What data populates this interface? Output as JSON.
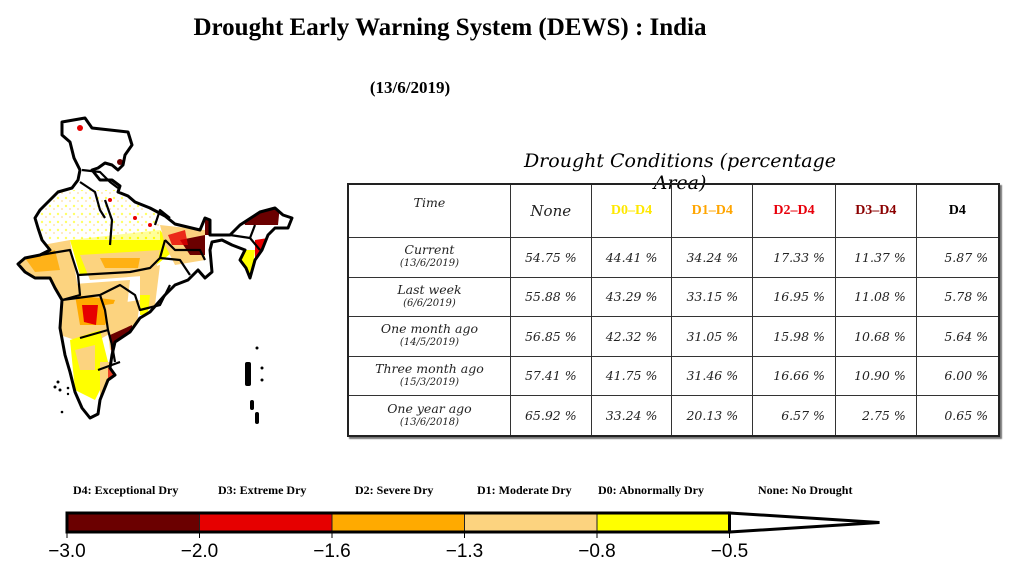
{
  "header": {
    "title": "Drought Early Warning System (DEWS) : India",
    "date": "(13/6/2019)"
  },
  "map": {
    "name": "India drought map",
    "description": "Choropleth of India with state boundaries shaded by drought category"
  },
  "table": {
    "caption": "Drought Conditions (percentage Area)",
    "headers": [
      {
        "label": "Time",
        "color": "#222222"
      },
      {
        "label": "None",
        "color": "#222222"
      },
      {
        "label": "D0–D4",
        "color": "#FFE800"
      },
      {
        "label": "D1–D4",
        "color": "#FFA500"
      },
      {
        "label": "D2–D4",
        "color": "#E8000B"
      },
      {
        "label": "D3–D4",
        "color": "#8B0000"
      },
      {
        "label": "D4",
        "color": "#000000"
      }
    ],
    "rows": [
      {
        "label": "Current",
        "date": "(13/6/2019)",
        "values": [
          "54.75 %",
          "44.41 %",
          "34.24 %",
          "17.33 %",
          "11.37 %",
          "5.87 %"
        ]
      },
      {
        "label": "Last week",
        "date": "(6/6/2019)",
        "values": [
          "55.88 %",
          "43.29 %",
          "33.15 %",
          "16.95 %",
          "11.08 %",
          "5.78 %"
        ]
      },
      {
        "label": "One month ago",
        "date": "(14/5/2019)",
        "values": [
          "56.85 %",
          "42.32 %",
          "31.05 %",
          "15.98 %",
          "10.68 %",
          "5.64 %"
        ]
      },
      {
        "label": "Three month ago",
        "date": "(15/3/2019)",
        "values": [
          "57.41 %",
          "41.75 %",
          "31.46 %",
          "16.66 %",
          "10.90 %",
          "6.00 %"
        ]
      },
      {
        "label": "One year ago",
        "date": "(13/6/2018)",
        "values": [
          "65.92 %",
          "33.24 %",
          "20.13 %",
          "6.57 %",
          "2.75 %",
          "0.65 %"
        ]
      }
    ]
  },
  "legend": {
    "labels": [
      "D4: Exceptional Dry",
      "D3: Extreme Dry",
      "D2: Severe Dry",
      "D1: Moderate Dry",
      "D0: Abnormally Dry",
      "None: No Drought"
    ],
    "ticks": [
      "−3.0",
      "−2.0",
      "−1.6",
      "−1.3",
      "−0.8",
      "−0.5"
    ]
  },
  "chart_data": {
    "type": "table",
    "title": "Drought Early Warning System (DEWS) : India",
    "subtitle": "(13/6/2019)",
    "table_title": "Drought Conditions (percentage Area)",
    "columns": [
      "Time",
      "None",
      "D0–D4",
      "D1–D4",
      "D2–D4",
      "D3–D4",
      "D4"
    ],
    "rows": [
      {
        "time": "Current (13/6/2019)",
        "None": 54.75,
        "D0-D4": 44.41,
        "D1-D4": 34.24,
        "D2-D4": 17.33,
        "D3-D4": 11.37,
        "D4": 5.87
      },
      {
        "time": "Last week (6/6/2019)",
        "None": 55.88,
        "D0-D4": 43.29,
        "D1-D4": 33.15,
        "D2-D4": 16.95,
        "D3-D4": 11.08,
        "D4": 5.78
      },
      {
        "time": "One month ago (14/5/2019)",
        "None": 56.85,
        "D0-D4": 42.32,
        "D1-D4": 31.05,
        "D2-D4": 15.98,
        "D3-D4": 10.68,
        "D4": 5.64
      },
      {
        "time": "Three month ago (15/3/2019)",
        "None": 57.41,
        "D0-D4": 41.75,
        "D1-D4": 31.46,
        "D2-D4": 16.66,
        "D3-D4": 10.9,
        "D4": 6.0
      },
      {
        "time": "One year ago (13/6/2018)",
        "None": 65.92,
        "D0-D4": 33.24,
        "D1-D4": 20.13,
        "D2-D4": 6.57,
        "D3-D4": 2.75,
        "D4": 0.65
      }
    ],
    "unit": "percent area",
    "colorbar": {
      "boundaries": [
        -3.0,
        -2.0,
        -1.6,
        -1.3,
        -0.8,
        -0.5
      ],
      "categories": [
        {
          "name": "D4: Exceptional Dry",
          "range": [
            -3.0,
            -2.0
          ],
          "color": "#6B0000"
        },
        {
          "name": "D3: Extreme Dry",
          "range": [
            -2.0,
            -1.6
          ],
          "color": "#E60000"
        },
        {
          "name": "D2: Severe Dry",
          "range": [
            -1.6,
            -1.3
          ],
          "color": "#FFAA00"
        },
        {
          "name": "D1: Moderate Dry",
          "range": [
            -1.3,
            -0.8
          ],
          "color": "#FCD37F"
        },
        {
          "name": "D0: Abnormally Dry",
          "range": [
            -0.8,
            -0.5
          ],
          "color": "#FFFF00"
        },
        {
          "name": "None: No Drought",
          "range": [
            -0.5,
            null
          ],
          "color": "#FFFFFF"
        }
      ]
    }
  }
}
